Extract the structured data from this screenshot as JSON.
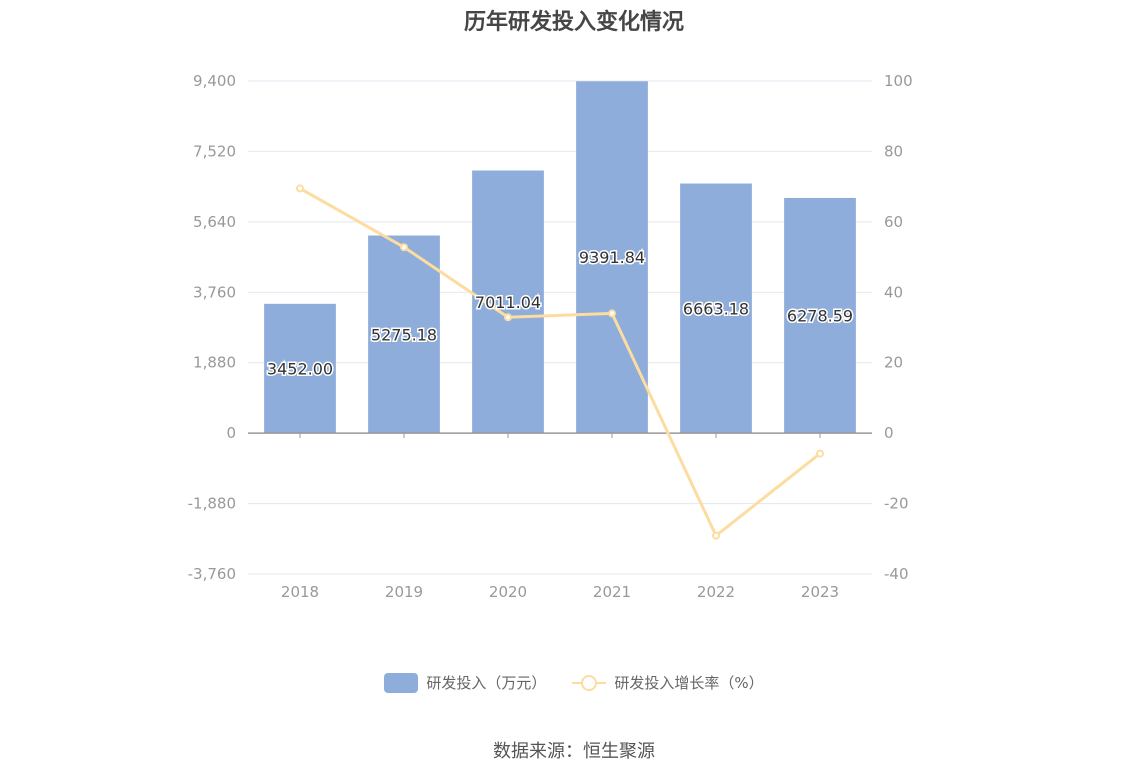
{
  "chart_data": {
    "type": "bar",
    "title": "历年研发投入变化情况",
    "categories": [
      "2018",
      "2019",
      "2020",
      "2021",
      "2022",
      "2023"
    ],
    "series": [
      {
        "name": "研发投入（万元）",
        "type": "bar",
        "axis": "left",
        "values": [
          3452.0,
          5275.18,
          7011.04,
          9391.84,
          6663.18,
          6278.59
        ],
        "labels": [
          "3452.00",
          "5275.18",
          "7011.04",
          "9391.84",
          "6663.18",
          "6278.59"
        ]
      },
      {
        "name": "研发投入增长率（%）",
        "type": "line",
        "axis": "right",
        "values": [
          69.5,
          52.8,
          32.9,
          34.0,
          -29.1,
          -5.8
        ]
      }
    ],
    "y_left": {
      "ylim": [
        -3760,
        9400
      ],
      "ticks": [
        9400,
        7520,
        5640,
        3760,
        1880,
        0,
        -1880,
        -3760
      ],
      "tick_labels": [
        "9,400",
        "7,520",
        "5,640",
        "3,760",
        "1,880",
        "0",
        "-1,880",
        "-3,760"
      ]
    },
    "y_right": {
      "ylim": [
        -40,
        100
      ],
      "ticks": [
        100,
        80,
        60,
        40,
        20,
        0,
        -20,
        -40
      ],
      "tick_labels": [
        "100",
        "80",
        "60",
        "40",
        "20",
        "0",
        "-20",
        "-40"
      ]
    },
    "grid": true,
    "legend": "bottom-center",
    "colors": {
      "bar": "#8eaddb",
      "line": "#fddca0",
      "grid": "#e3e7f0",
      "axis": "#999999"
    }
  },
  "source": "数据来源：恒生聚源"
}
